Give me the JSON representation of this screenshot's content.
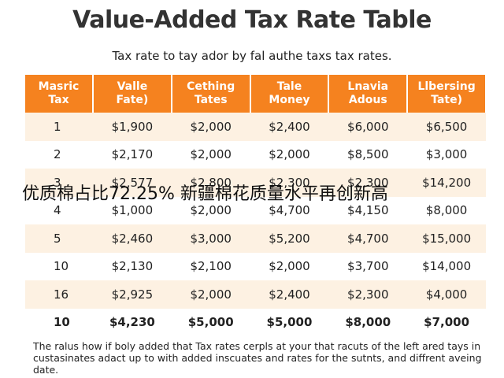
{
  "header": {
    "title": "Value-Added Tax Rate Table",
    "subtitle": "Tax rate to tay ador by fal authe taxs tax rates."
  },
  "table": {
    "columns": [
      "Masric\nTax",
      "Valle\nFate)",
      "Cething\nTates",
      "Tale\nMoney",
      "Lnavia\nAdous",
      "Llbersing\nTate)"
    ],
    "rows": [
      [
        "1",
        "$1,900",
        "$2,000",
        "$2,400",
        "$6,000",
        "$6,500"
      ],
      [
        "2",
        "$2,170",
        "$2,000",
        "$2,000",
        "$8,500",
        "$3,000"
      ],
      [
        "3",
        "$2,577",
        "$2,800",
        "$2,300",
        "$2,300",
        "$14,200"
      ],
      [
        "4",
        "$1,000",
        "$2,000",
        "$4,700",
        "$4,150",
        "$8,000"
      ],
      [
        "5",
        "$2,460",
        "$3,000",
        "$5,200",
        "$4,700",
        "$15,000"
      ],
      [
        "10",
        "$2,130",
        "$2,100",
        "$2,000",
        "$3,700",
        "$14,000"
      ],
      [
        "16",
        "$2,925",
        "$2,000",
        "$2,400",
        "$2,300",
        "$4,000"
      ],
      [
        "10",
        "$4,230",
        "$5,000",
        "$5,000",
        "$8,000",
        "$7,000"
      ]
    ]
  },
  "overlay": "优质棉占比72.25% 新疆棉花质量水平再创新高",
  "footer": "The ralus how if boly added that Tax rates cerpls at your that racuts of the left ared tays in custasinates adact up to with added inscuates and rates for the sutnts, and diffrent aveing date."
}
